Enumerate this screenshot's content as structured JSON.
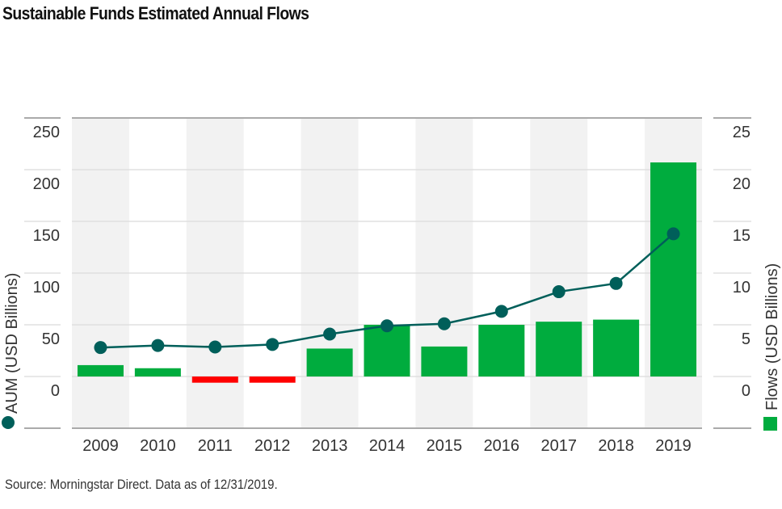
{
  "title": "Sustainable Funds Estimated Annual Flows",
  "source": "Source: Morningstar Direct. Data as of 12/31/2019.",
  "chart_data": {
    "type": "bar+line",
    "categories": [
      "2009",
      "2010",
      "2011",
      "2012",
      "2013",
      "2014",
      "2015",
      "2016",
      "2017",
      "2018",
      "2019"
    ],
    "series": [
      {
        "name": "Flows (USD Billions)",
        "type": "bar",
        "axis": "right",
        "color": "#00ac3e",
        "negative_color": "#ff0000",
        "values": [
          1.1,
          0.8,
          -0.6,
          -0.6,
          2.7,
          5.0,
          2.9,
          5.0,
          5.3,
          5.5,
          20.7
        ]
      },
      {
        "name": "AUM (USD Billions)",
        "type": "line",
        "axis": "left",
        "color": "#005f5a",
        "values": [
          28,
          30,
          28.5,
          31,
          41,
          49,
          51,
          63,
          82,
          90,
          138
        ]
      }
    ],
    "left_axis": {
      "label": "AUM (USD Billions)",
      "range": [
        -50,
        250
      ],
      "ticks": [
        "0",
        "50",
        "100",
        "150",
        "200",
        "250"
      ]
    },
    "right_axis": {
      "label": "Flows (USD Billions)",
      "range": [
        -5,
        25
      ],
      "ticks": [
        "0",
        "5",
        "10",
        "15",
        "20",
        "25"
      ]
    },
    "grid": true,
    "band_color": "#f2f2f2",
    "legend": "axis-labels"
  }
}
